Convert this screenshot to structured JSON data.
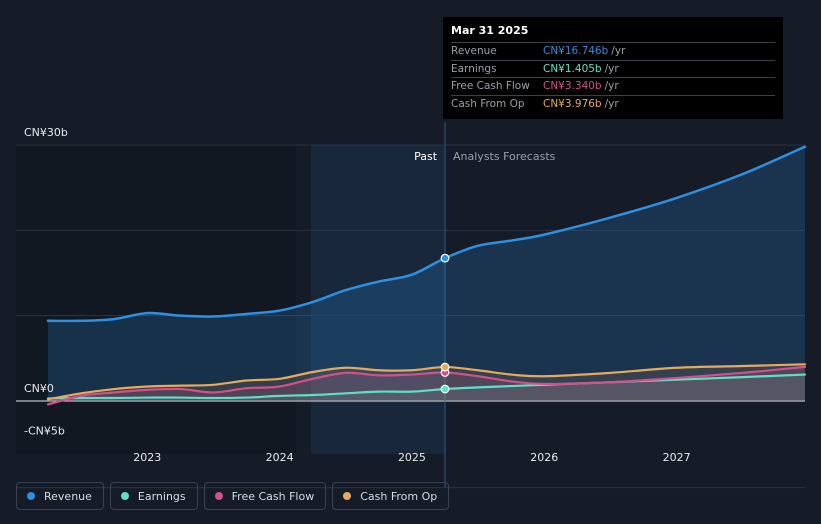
{
  "chart_data": {
    "type": "line",
    "y_labels": [
      "CN¥30b",
      "CN¥0",
      "-CN¥5b"
    ],
    "ylim": [
      -5,
      30
    ],
    "xlim": [
      2022.25,
      2027.97
    ],
    "x_ticks": [
      "2023",
      "2024",
      "2025",
      "2026",
      "2027"
    ],
    "x_tick_values": [
      2023,
      2024,
      2025,
      2026,
      2027
    ],
    "divider_x": 2025.25,
    "past_label": "Past",
    "forecast_label": "Analysts Forecasts",
    "series": [
      {
        "name": "Revenue",
        "color": "#2f8fe0",
        "x": [
          2022.25,
          2022.5,
          2022.75,
          2023.0,
          2023.25,
          2023.5,
          2023.75,
          2024.0,
          2024.25,
          2024.5,
          2024.75,
          2025.0,
          2025.25,
          2025.5,
          2025.75,
          2026.0,
          2026.5,
          2027.0,
          2027.5,
          2027.97
        ],
        "values": [
          9.4,
          9.4,
          9.6,
          10.3,
          10.0,
          9.9,
          10.2,
          10.6,
          11.6,
          13.0,
          14.0,
          14.8,
          16.746,
          18.2,
          18.8,
          19.5,
          21.5,
          23.8,
          26.6,
          29.8
        ]
      },
      {
        "name": "Earnings",
        "color": "#5ee0c8",
        "x": [
          2022.25,
          2022.5,
          2022.75,
          2023.0,
          2023.25,
          2023.5,
          2023.75,
          2024.0,
          2024.25,
          2024.5,
          2024.75,
          2025.0,
          2025.25,
          2025.5,
          2025.75,
          2026.0,
          2026.5,
          2027.0,
          2027.5,
          2027.97
        ],
        "values": [
          0.3,
          0.35,
          0.35,
          0.4,
          0.4,
          0.35,
          0.4,
          0.6,
          0.7,
          0.9,
          1.1,
          1.1,
          1.405,
          1.6,
          1.75,
          1.9,
          2.2,
          2.5,
          2.8,
          3.1
        ]
      },
      {
        "name": "Free Cash Flow",
        "color": "#d4508a",
        "x": [
          2022.25,
          2022.5,
          2022.75,
          2023.0,
          2023.25,
          2023.5,
          2023.75,
          2024.0,
          2024.25,
          2024.5,
          2024.75,
          2025.0,
          2025.25,
          2025.5,
          2025.75,
          2026.0,
          2026.5,
          2027.0,
          2027.5,
          2027.97
        ],
        "values": [
          -0.4,
          0.6,
          1.0,
          1.3,
          1.4,
          1.0,
          1.5,
          1.7,
          2.6,
          3.3,
          3.0,
          3.1,
          3.34,
          2.9,
          2.3,
          2.0,
          2.2,
          2.7,
          3.3,
          4.0
        ]
      },
      {
        "name": "Cash From Op",
        "color": "#e8a95a",
        "x": [
          2022.25,
          2022.5,
          2022.75,
          2023.0,
          2023.25,
          2023.5,
          2023.75,
          2024.0,
          2024.25,
          2024.5,
          2024.75,
          2025.0,
          2025.25,
          2025.5,
          2025.75,
          2026.0,
          2026.5,
          2027.0,
          2027.5,
          2027.97
        ],
        "values": [
          0.2,
          0.9,
          1.4,
          1.7,
          1.8,
          1.9,
          2.4,
          2.6,
          3.4,
          3.9,
          3.6,
          3.6,
          3.976,
          3.6,
          3.1,
          2.9,
          3.3,
          3.9,
          4.1,
          4.3
        ]
      }
    ]
  },
  "tooltip": {
    "date": "Mar 31 2025",
    "rows": [
      {
        "label": "Revenue",
        "value": "CN¥16.746b",
        "unit": "/yr",
        "color": "#2f8fe0"
      },
      {
        "label": "Earnings",
        "value": "CN¥1.405b",
        "unit": "/yr",
        "color": "#5ee0c8"
      },
      {
        "label": "Free Cash Flow",
        "value": "CN¥3.340b",
        "unit": "/yr",
        "color": "#d4508a"
      },
      {
        "label": "Cash From Op",
        "value": "CN¥3.976b",
        "unit": "/yr",
        "color": "#e8a95a"
      }
    ]
  },
  "legend": [
    {
      "label": "Revenue",
      "color": "#2f8fe0"
    },
    {
      "label": "Earnings",
      "color": "#5ee0c8"
    },
    {
      "label": "Free Cash Flow",
      "color": "#d4508a"
    },
    {
      "label": "Cash From Op",
      "color": "#e8a95a"
    }
  ]
}
